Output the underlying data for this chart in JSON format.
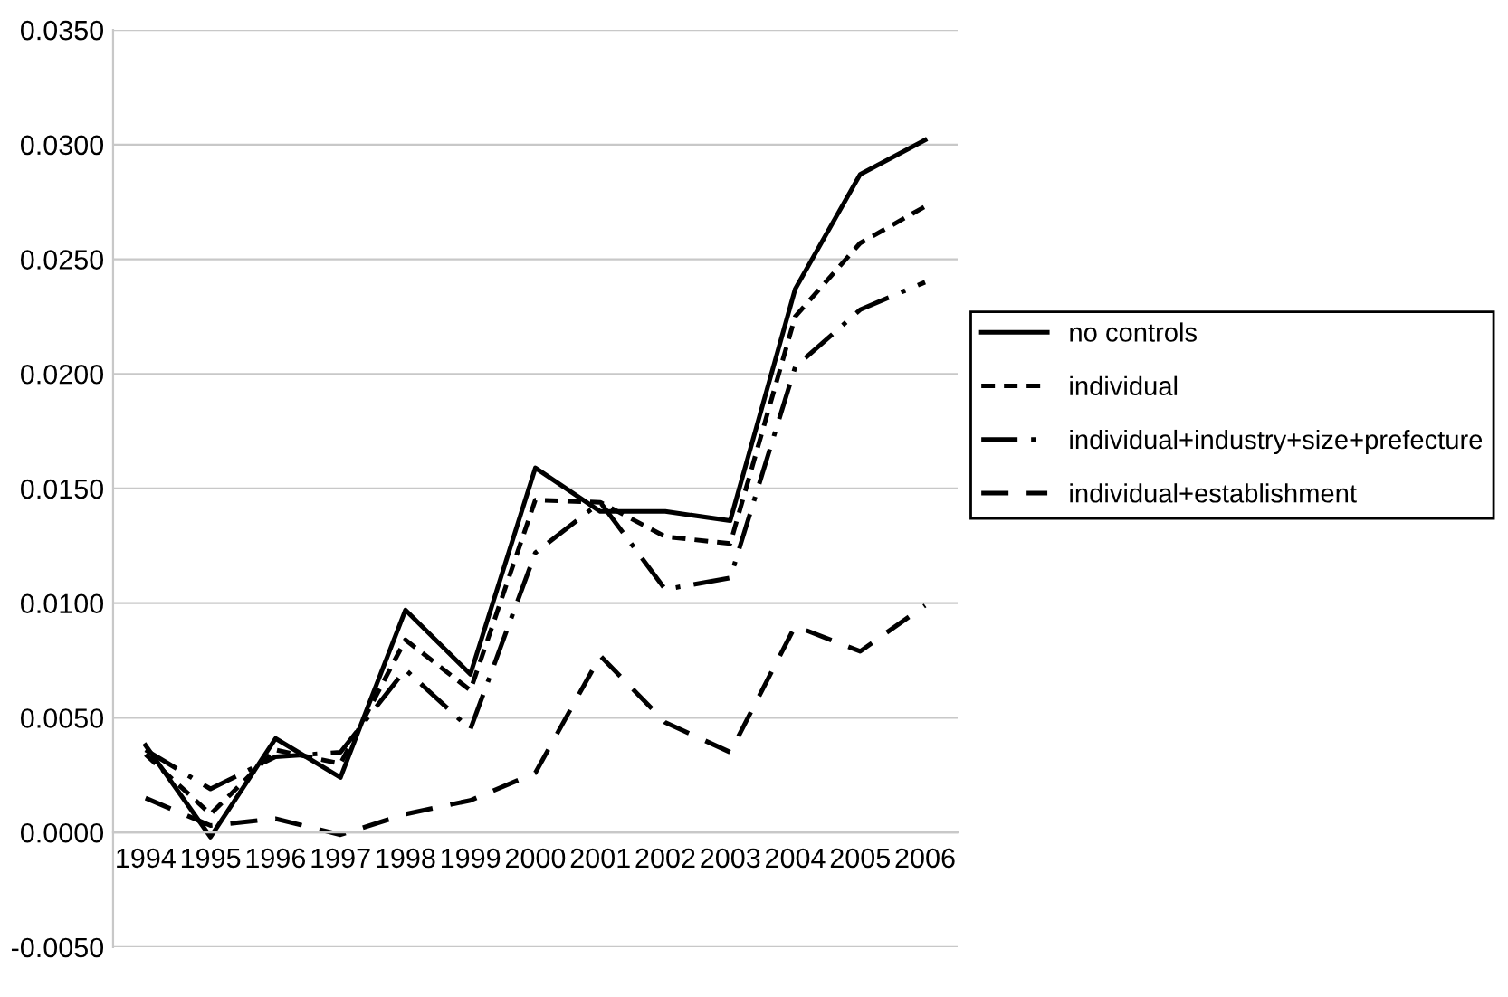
{
  "chart_data": {
    "type": "line",
    "categories": [
      "1994",
      "1995",
      "1996",
      "1997",
      "1998",
      "1999",
      "2000",
      "2001",
      "2002",
      "2003",
      "2004",
      "2005",
      "2006"
    ],
    "series": [
      {
        "name": "no controls",
        "color": "#000000",
        "line_style": "solid",
        "values": [
          0.0038,
          -0.0002,
          0.0041,
          0.0024,
          0.0097,
          0.0069,
          0.0159,
          0.014,
          0.014,
          0.0136,
          0.0237,
          0.0287,
          0.0302
        ]
      },
      {
        "name": "individual",
        "color": "#000000",
        "line_style": "dashed",
        "values": [
          0.0034,
          0.0008,
          0.0036,
          0.003,
          0.0084,
          0.0062,
          0.0145,
          0.0144,
          0.0129,
          0.0126,
          0.0225,
          0.0257,
          0.0273
        ]
      },
      {
        "name": "individual+industry+size+prefecture",
        "color": "#000000",
        "line_style": "dashdot",
        "values": [
          0.0036,
          0.0019,
          0.0033,
          0.0035,
          0.0071,
          0.0045,
          0.0122,
          0.0144,
          0.0106,
          0.0111,
          0.0203,
          0.0228,
          0.024
        ]
      },
      {
        "name": "individual+establishment",
        "color": "#000000",
        "line_style": "longdash",
        "values": [
          0.0015,
          0.0003,
          0.0006,
          -0.0001,
          0.0008,
          0.0014,
          0.0026,
          0.0077,
          0.0048,
          0.0035,
          0.009,
          0.0079,
          0.0099
        ]
      }
    ],
    "ylim": [
      -0.005,
      0.035
    ],
    "yticks": [
      {
        "value": -0.005,
        "label": "-0.0050"
      },
      {
        "value": 0.0,
        "label": "0.0000"
      },
      {
        "value": 0.005,
        "label": "0.0050"
      },
      {
        "value": 0.01,
        "label": "0.0100"
      },
      {
        "value": 0.015,
        "label": "0.0150"
      },
      {
        "value": 0.02,
        "label": "0.0200"
      },
      {
        "value": 0.025,
        "label": "0.0250"
      },
      {
        "value": 0.03,
        "label": "0.0300"
      },
      {
        "value": 0.035,
        "label": "0.0350"
      }
    ],
    "grid": "y",
    "legend": "right"
  }
}
